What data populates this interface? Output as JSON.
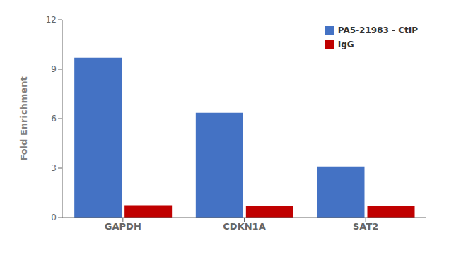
{
  "chart_data": {
    "type": "bar",
    "categories": [
      "GAPDH",
      "CDKN1A",
      "SAT2"
    ],
    "series": [
      {
        "name": "PA5-21983 - CtIP",
        "color": "#4472C4",
        "values": [
          9.7,
          6.35,
          3.1
        ]
      },
      {
        "name": "IgG",
        "color": "#C00000",
        "values": [
          0.75,
          0.72,
          0.72
        ]
      }
    ],
    "ylabel": "Fold Enrichment",
    "ylim": [
      0,
      12
    ],
    "yticks": [
      0,
      3,
      6,
      9,
      12
    ],
    "grid": false,
    "legend": "upper right"
  }
}
